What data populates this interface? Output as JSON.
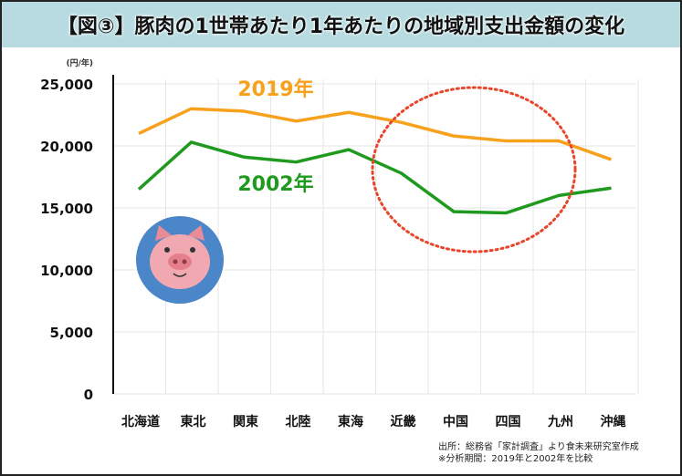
{
  "title": "【図③】豚肉の1世帯あたり1年あたりの地域別支出金額の変化",
  "chart_data": {
    "type": "line",
    "title": "【図③】豚肉の1世帯あたり1年あたりの地域別支出金額の変化",
    "ylabel": "(円/年)",
    "ylim": [
      0,
      25000
    ],
    "yticks": [
      0,
      5000,
      10000,
      15000,
      20000,
      25000
    ],
    "ytick_labels": [
      "0",
      "5,000",
      "10,000",
      "15,000",
      "20,000",
      "25,000"
    ],
    "categories": [
      "北海道",
      "東北",
      "関東",
      "北陸",
      "東海",
      "近畿",
      "中国",
      "四国",
      "九州",
      "沖縄"
    ],
    "series": [
      {
        "name": "2019年",
        "color": "#f7a11c",
        "values": [
          21000,
          23000,
          22800,
          22000,
          22700,
          21900,
          20800,
          20400,
          20400,
          18900
        ]
      },
      {
        "name": "2002年",
        "color": "#1f9a1f",
        "values": [
          16500,
          20300,
          19100,
          18700,
          19700,
          17800,
          14700,
          14600,
          16000,
          16600
        ]
      }
    ],
    "grid": true
  },
  "source": [
    "出所：総務省「家計調査」より食未来研究室作成",
    "※分析期間：2019年と2002年を比較"
  ]
}
